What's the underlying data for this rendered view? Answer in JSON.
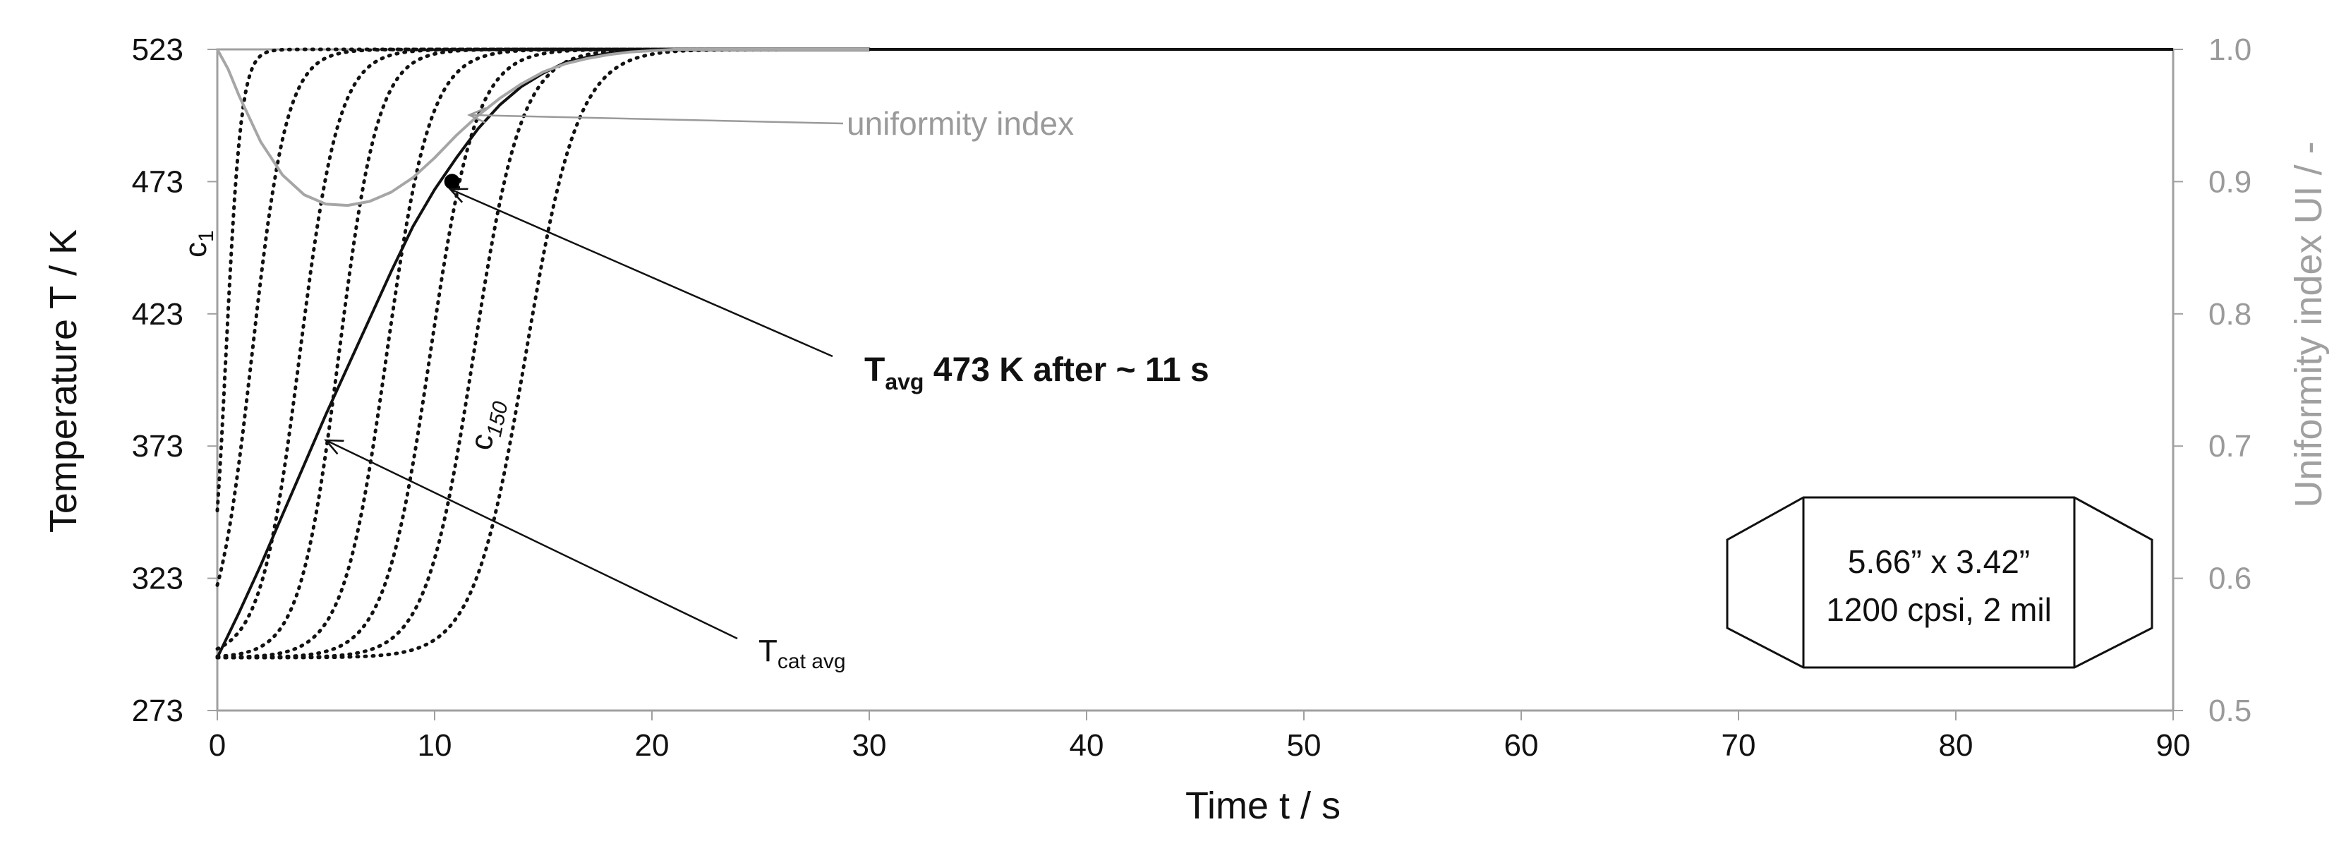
{
  "chart_data": {
    "type": "line",
    "xlabel": "Time t  / s",
    "ylabel": "Temperature T / K",
    "y2label": "Uniformity index UI / -",
    "xlim": [
      0,
      90
    ],
    "ylim": [
      273,
      523
    ],
    "y2lim": [
      0.5,
      1.0
    ],
    "x_ticks": [
      0,
      10,
      20,
      30,
      40,
      50,
      60,
      70,
      80,
      90
    ],
    "y_ticks": [
      273,
      323,
      373,
      423,
      473,
      523
    ],
    "y2_ticks": [
      "0.5",
      "0.6",
      "0.7",
      "0.8",
      "0.9",
      "1.0"
    ],
    "grid": false,
    "colors": {
      "primary": "#111111",
      "uniformity": "#a6a6a6",
      "right_axis": "#9a9a9a"
    },
    "series": [
      {
        "name": "T cat avg",
        "axis": "left",
        "style": "solid",
        "x": [
          0,
          1,
          2,
          3,
          4,
          5,
          6,
          7,
          8,
          9,
          10,
          11,
          12,
          13,
          14,
          15,
          16,
          17,
          18,
          19,
          20,
          21,
          22,
          23,
          24,
          25,
          30,
          90
        ],
        "y": [
          293,
          310,
          328,
          347,
          366,
          385,
          403,
          421,
          439,
          456,
          470,
          482,
          493,
          502,
          509,
          514,
          518,
          520,
          521.5,
          522.3,
          522.7,
          522.9,
          523,
          523,
          523,
          523,
          523,
          523
        ]
      },
      {
        "name": "uniformity index",
        "axis": "right",
        "style": "solid",
        "x": [
          0,
          0.5,
          1,
          2,
          3,
          4,
          5,
          6,
          7,
          8,
          9,
          10,
          11,
          12,
          13,
          14,
          15,
          16,
          17,
          18,
          19,
          20,
          21,
          22,
          24,
          26,
          30
        ],
        "y": [
          1.0,
          0.985,
          0.965,
          0.93,
          0.905,
          0.89,
          0.883,
          0.882,
          0.885,
          0.892,
          0.903,
          0.918,
          0.935,
          0.95,
          0.963,
          0.974,
          0.983,
          0.989,
          0.993,
          0.996,
          0.998,
          0.999,
          1.0,
          1.0,
          1.0,
          1.0,
          1.0
        ]
      }
    ],
    "channel_curves": {
      "style": "dotted",
      "t_start": 293,
      "t_end": 523,
      "midpoints": [
        0.4,
        1.6,
        3.8,
        5.6,
        7.8,
        9.8,
        11.8,
        14.2
      ],
      "widths": [
        0.35,
        0.8,
        0.9,
        0.9,
        1.0,
        1.05,
        1.1,
        1.2
      ],
      "labels": {
        "first": "c1",
        "last": "c150"
      }
    },
    "marker": {
      "x": 10.8,
      "y": 473
    },
    "annotations": {
      "uniformity": "uniformity index",
      "tavg_main": "T",
      "tavg_sub": "avg",
      "tavg_rest": " 473 K after ~ 11 s",
      "tcat_main": "T",
      "tcat_sub": "cat avg",
      "c1_main": "c",
      "c1_sub": "1",
      "c150_main": "c",
      "c150_sub": "150"
    },
    "inset": {
      "line1": "5.66” x 3.42”",
      "line2": "1200 cpsi, 2 mil"
    }
  }
}
